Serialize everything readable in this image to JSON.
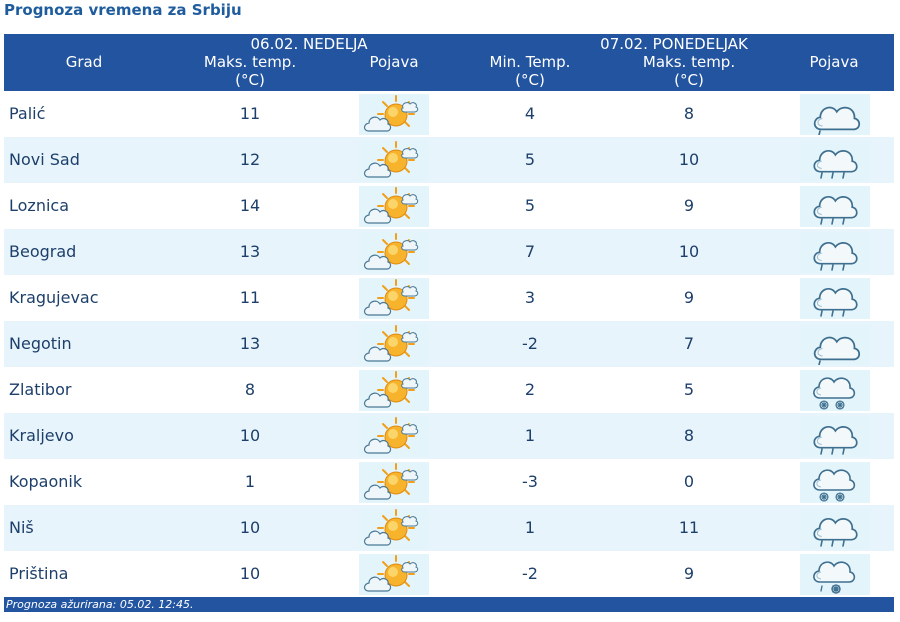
{
  "page_title": "Prognoza vremena za Srbiju",
  "header": {
    "grad": "Grad",
    "day1_date": "06.02. NEDELJA",
    "day1_max": "Maks. temp.",
    "day2_date": "07.02. PONEDELJAK",
    "day2_min": "Min. Temp.",
    "day2_max": "Maks. temp.",
    "unit": "(°C)",
    "pojava": "Pojava"
  },
  "rows": [
    {
      "city": "Palić",
      "d1_max": "11",
      "d1_icon": "sun-cloud-icon",
      "d2_min": "4",
      "d2_max": "8",
      "d2_icon": "cloud-drizzle-icon"
    },
    {
      "city": "Novi Sad",
      "d1_max": "12",
      "d1_icon": "sun-cloud-icon",
      "d2_min": "5",
      "d2_max": "10",
      "d2_icon": "cloud-rain-icon"
    },
    {
      "city": "Loznica",
      "d1_max": "14",
      "d1_icon": "sun-cloud-icon",
      "d2_min": "5",
      "d2_max": "9",
      "d2_icon": "cloud-rain-icon"
    },
    {
      "city": "Beograd",
      "d1_max": "13",
      "d1_icon": "sun-cloud-icon",
      "d2_min": "7",
      "d2_max": "10",
      "d2_icon": "cloud-rain-icon"
    },
    {
      "city": "Kragujevac",
      "d1_max": "11",
      "d1_icon": "sun-cloud-icon",
      "d2_min": "3",
      "d2_max": "9",
      "d2_icon": "cloud-rain-icon"
    },
    {
      "city": "Negotin",
      "d1_max": "13",
      "d1_icon": "sun-cloud-icon",
      "d2_min": "-2",
      "d2_max": "7",
      "d2_icon": "cloud-drizzle-icon"
    },
    {
      "city": "Zlatibor",
      "d1_max": "8",
      "d1_icon": "sun-cloud-icon",
      "d2_min": "2",
      "d2_max": "5",
      "d2_icon": "cloud-snow-icon"
    },
    {
      "city": "Kraljevo",
      "d1_max": "10",
      "d1_icon": "sun-cloud-icon",
      "d2_min": "1",
      "d2_max": "8",
      "d2_icon": "cloud-rain-icon"
    },
    {
      "city": "Kopaonik",
      "d1_max": "1",
      "d1_icon": "sun-cloud-icon",
      "d2_min": "-3",
      "d2_max": "0",
      "d2_icon": "cloud-snow-icon"
    },
    {
      "city": "Niš",
      "d1_max": "10",
      "d1_icon": "sun-cloud-icon",
      "d2_min": "1",
      "d2_max": "11",
      "d2_icon": "cloud-rain-icon"
    },
    {
      "city": "Priština",
      "d1_max": "10",
      "d1_icon": "sun-cloud-icon",
      "d2_min": "-2",
      "d2_max": "9",
      "d2_icon": "cloud-sleet-icon"
    }
  ],
  "footer": "Prognoza ažurirana:  05.02. 12:45.",
  "colors": {
    "header_bg": "#2254a0",
    "stripe": "#e7f4fb",
    "text": "#1d3f6b",
    "title": "#1f5c9e",
    "sun": "#f5a21b"
  }
}
